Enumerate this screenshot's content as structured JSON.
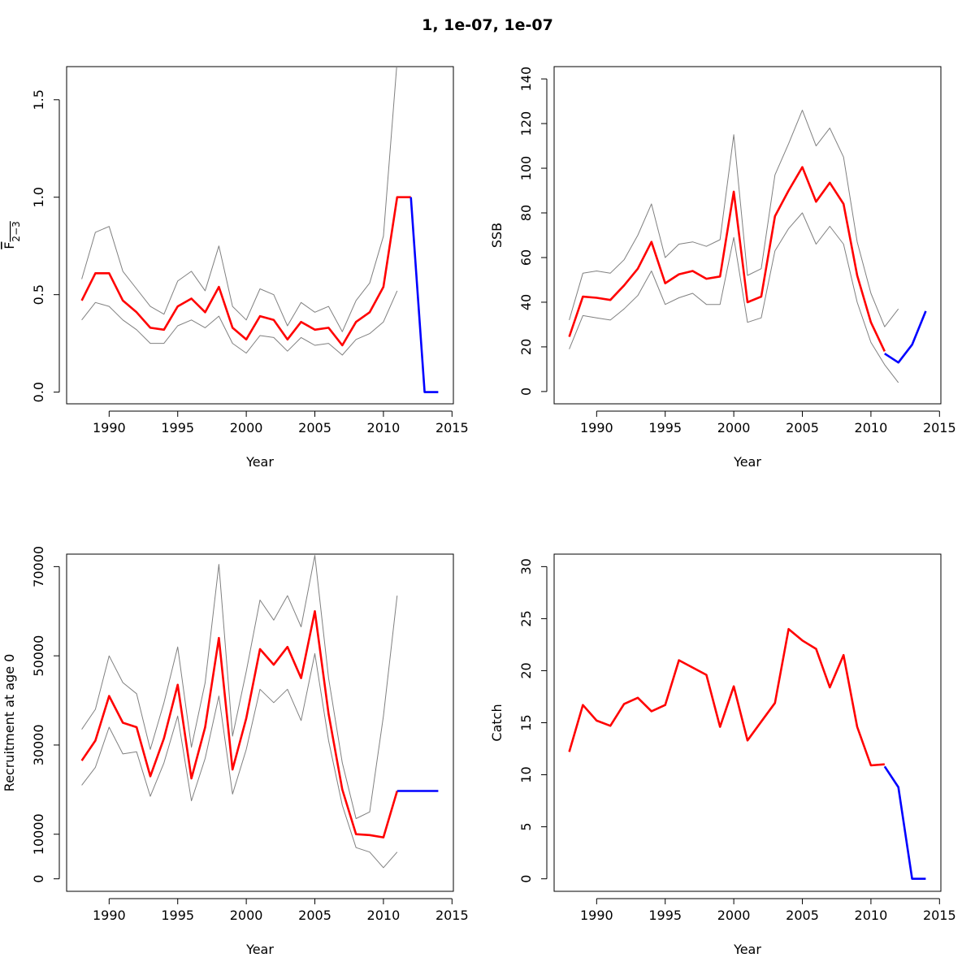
{
  "title": "1, 1e-07, 1e-07",
  "colors": {
    "estimate": "#ff0000",
    "forecast": "#0000ff",
    "interval": "#808080",
    "axis": "#000000"
  },
  "chart_data": [
    {
      "type": "line",
      "panel": "top-left",
      "xlabel": "Year",
      "ylabel_main": "F",
      "ylabel_sub": "2−3",
      "xlim": [
        1986.9,
        2015.1
      ],
      "ylim": [
        -0.06,
        1.67
      ],
      "x_ticks": [
        1990,
        1995,
        2000,
        2005,
        2010,
        2015
      ],
      "y_ticks": [
        0.0,
        0.5,
        1.0,
        1.5
      ],
      "y_tick_labels": [
        "0.0",
        "0.5",
        "1.0",
        "1.5"
      ],
      "series": [
        {
          "role": "upper",
          "x": [
            1988,
            1989,
            1990,
            1991,
            1992,
            1993,
            1994,
            1995,
            1996,
            1997,
            1998,
            1999,
            2000,
            2001,
            2002,
            2003,
            2004,
            2005,
            2006,
            2007,
            2008,
            2009,
            2010,
            2011
          ],
          "values": [
            0.58,
            0.82,
            0.85,
            0.62,
            0.53,
            0.44,
            0.4,
            0.57,
            0.62,
            0.52,
            0.75,
            0.44,
            0.37,
            0.53,
            0.5,
            0.34,
            0.46,
            0.41,
            0.44,
            0.31,
            0.47,
            0.56,
            0.8,
            1.7
          ]
        },
        {
          "role": "lower",
          "x": [
            1988,
            1989,
            1990,
            1991,
            1992,
            1993,
            1994,
            1995,
            1996,
            1997,
            1998,
            1999,
            2000,
            2001,
            2002,
            2003,
            2004,
            2005,
            2006,
            2007,
            2008,
            2009,
            2010,
            2011
          ],
          "values": [
            0.37,
            0.46,
            0.44,
            0.37,
            0.32,
            0.25,
            0.25,
            0.34,
            0.37,
            0.33,
            0.39,
            0.25,
            0.2,
            0.29,
            0.28,
            0.21,
            0.28,
            0.24,
            0.25,
            0.19,
            0.27,
            0.3,
            0.36,
            0.52
          ]
        },
        {
          "role": "estimate",
          "x": [
            1988,
            1989,
            1990,
            1991,
            1992,
            1993,
            1994,
            1995,
            1996,
            1997,
            1998,
            1999,
            2000,
            2001,
            2002,
            2003,
            2004,
            2005,
            2006,
            2007,
            2008,
            2009,
            2010,
            2011,
            2012
          ],
          "values": [
            0.47,
            0.61,
            0.61,
            0.47,
            0.41,
            0.33,
            0.32,
            0.44,
            0.48,
            0.41,
            0.54,
            0.33,
            0.27,
            0.39,
            0.37,
            0.27,
            0.36,
            0.32,
            0.33,
            0.24,
            0.36,
            0.41,
            0.54,
            1.0,
            1.0
          ]
        },
        {
          "role": "forecast",
          "x": [
            2012,
            2013,
            2014
          ],
          "values": [
            1.0,
            0.0,
            0.0
          ]
        }
      ]
    },
    {
      "type": "line",
      "panel": "top-right",
      "xlabel": "Year",
      "ylabel_main": "SSB",
      "ylabel_sub": "",
      "xlim": [
        1986.9,
        2015.1
      ],
      "ylim": [
        -5.5,
        145.5
      ],
      "x_ticks": [
        1990,
        1995,
        2000,
        2005,
        2010,
        2015
      ],
      "y_ticks": [
        0,
        20,
        40,
        60,
        80,
        100,
        120,
        140
      ],
      "y_tick_labels": [
        "0",
        "20",
        "40",
        "60",
        "80",
        "100",
        "120",
        "140"
      ],
      "series": [
        {
          "role": "upper",
          "x": [
            1988,
            1989,
            1990,
            1991,
            1992,
            1993,
            1994,
            1995,
            1996,
            1997,
            1998,
            1999,
            2000,
            2001,
            2002,
            2003,
            2004,
            2005,
            2006,
            2007,
            2008,
            2009,
            2010,
            2011,
            2012
          ],
          "values": [
            32,
            53,
            54,
            53,
            59,
            70,
            84,
            60,
            66,
            67,
            65,
            68,
            115,
            52,
            55,
            97,
            111,
            126,
            110,
            118,
            105,
            67,
            44,
            29,
            37
          ]
        },
        {
          "role": "lower",
          "x": [
            1988,
            1989,
            1990,
            1991,
            1992,
            1993,
            1994,
            1995,
            1996,
            1997,
            1998,
            1999,
            2000,
            2001,
            2002,
            2003,
            2004,
            2005,
            2006,
            2007,
            2008,
            2009,
            2010,
            2011,
            2012
          ],
          "values": [
            19,
            34,
            33,
            32,
            37,
            43,
            54,
            39,
            42,
            44,
            39,
            39,
            69,
            31,
            33,
            63,
            73,
            80,
            66,
            74,
            66,
            40,
            22,
            12,
            4
          ]
        },
        {
          "role": "estimate",
          "x": [
            1988,
            1989,
            1990,
            1991,
            1992,
            1993,
            1994,
            1995,
            1996,
            1997,
            1998,
            1999,
            2000,
            2001,
            2002,
            2003,
            2004,
            2005,
            2006,
            2007,
            2008,
            2009,
            2010,
            2011
          ],
          "values": [
            24.5,
            42.5,
            42,
            41,
            47.5,
            55,
            67,
            48.5,
            52.5,
            54,
            50.5,
            51.5,
            89.5,
            40,
            42.5,
            78.5,
            90,
            100.5,
            85,
            93.5,
            84,
            52,
            31,
            18
          ]
        },
        {
          "role": "forecast",
          "x": [
            2011,
            2012,
            2013,
            2014
          ],
          "values": [
            17,
            13,
            21,
            36
          ]
        }
      ]
    },
    {
      "type": "line",
      "panel": "bottom-left",
      "xlabel": "Year",
      "ylabel_main": "Recruitment at age 0",
      "ylabel_sub": "",
      "xlim": [
        1986.9,
        2015.1
      ],
      "ylim": [
        -2800,
        72800
      ],
      "x_ticks": [
        1990,
        1995,
        2000,
        2005,
        2010,
        2015
      ],
      "y_ticks": [
        0,
        10000,
        30000,
        50000,
        70000
      ],
      "y_tick_labels": [
        "0",
        "10000",
        "30000",
        "50000",
        "70000"
      ],
      "series": [
        {
          "role": "upper",
          "x": [
            1988,
            1989,
            1990,
            1991,
            1992,
            1993,
            1994,
            1995,
            1996,
            1997,
            1998,
            1999,
            2000,
            2001,
            2002,
            2003,
            2004,
            2005,
            2006,
            2007,
            2008,
            2009,
            2010,
            2011
          ],
          "values": [
            33500,
            38000,
            50000,
            44000,
            41500,
            29000,
            39500,
            52000,
            29500,
            44000,
            70500,
            32000,
            46500,
            62500,
            58000,
            63500,
            56500,
            72500,
            45000,
            26000,
            13500,
            15000,
            36500,
            63500
          ]
        },
        {
          "role": "lower",
          "x": [
            1988,
            1989,
            1990,
            1991,
            1992,
            1993,
            1994,
            1995,
            1996,
            1997,
            1998,
            1999,
            2000,
            2001,
            2002,
            2003,
            2004,
            2005,
            2006,
            2007,
            2008,
            2009,
            2010,
            2011
          ],
          "values": [
            21000,
            25000,
            34000,
            28000,
            28500,
            18500,
            26000,
            36500,
            17500,
            27000,
            41000,
            19000,
            29000,
            42500,
            39500,
            42500,
            35500,
            50500,
            31000,
            16500,
            7000,
            6000,
            2500,
            6000
          ]
        },
        {
          "role": "estimate",
          "x": [
            1988,
            1989,
            1990,
            1991,
            1992,
            1993,
            1994,
            1995,
            1996,
            1997,
            1998,
            1999,
            2000,
            2001,
            2002,
            2003,
            2004,
            2005,
            2006,
            2007,
            2008,
            2009,
            2010,
            2011
          ],
          "values": [
            26500,
            31000,
            41000,
            35000,
            34000,
            23000,
            31500,
            43500,
            22500,
            34000,
            54000,
            24500,
            36000,
            51500,
            48000,
            52000,
            45000,
            60000,
            37000,
            20000,
            10000,
            9800,
            9300,
            19700
          ]
        },
        {
          "role": "forecast",
          "x": [
            2011,
            2012,
            2013,
            2014
          ],
          "values": [
            19700,
            19700,
            19700,
            19700
          ]
        }
      ]
    },
    {
      "type": "line",
      "panel": "bottom-right",
      "xlabel": "Year",
      "ylabel_main": "Catch",
      "ylabel_sub": "",
      "xlim": [
        1986.9,
        2015.1
      ],
      "ylim": [
        -1.2,
        31.2
      ],
      "x_ticks": [
        1990,
        1995,
        2000,
        2005,
        2010,
        2015
      ],
      "y_ticks": [
        0,
        5,
        10,
        15,
        20,
        25,
        30
      ],
      "y_tick_labels": [
        "0",
        "5",
        "10",
        "15",
        "20",
        "25",
        "30"
      ],
      "series": [
        {
          "role": "estimate",
          "x": [
            1988,
            1989,
            1990,
            1991,
            1992,
            1993,
            1994,
            1995,
            1996,
            1997,
            1998,
            1999,
            2000,
            2001,
            2002,
            2003,
            2004,
            2005,
            2006,
            2007,
            2008,
            2009,
            2010,
            2011
          ],
          "values": [
            12.2,
            16.7,
            15.2,
            14.7,
            16.8,
            17.4,
            16.1,
            16.7,
            21.0,
            20.3,
            19.6,
            14.6,
            18.5,
            13.3,
            15.1,
            16.9,
            24.0,
            22.9,
            22.1,
            18.4,
            21.5,
            14.6,
            10.9,
            11.0
          ]
        },
        {
          "role": "forecast",
          "x": [
            2011,
            2012,
            2013,
            2014
          ],
          "values": [
            10.8,
            8.8,
            0.0,
            0.0
          ]
        }
      ]
    }
  ]
}
